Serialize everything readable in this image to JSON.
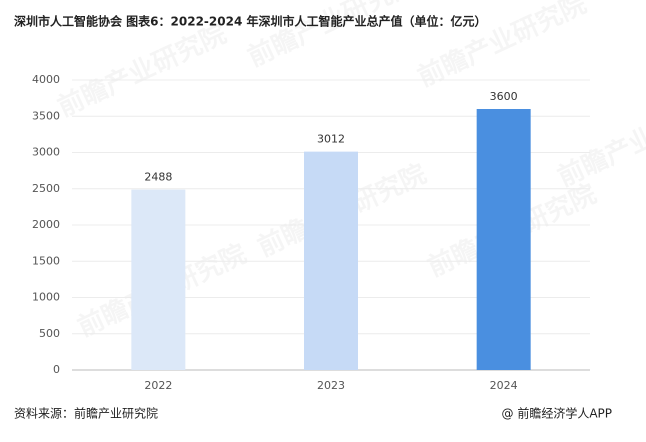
{
  "chart_data": {
    "type": "bar",
    "title": "深圳市人工智能协会  图表6：2022-2024 年深圳市人工智能产业总产值（单位：亿元）",
    "categories": [
      "2022",
      "2023",
      "2024"
    ],
    "values": [
      2488,
      3012,
      3600
    ],
    "colors": [
      "#dce8f8",
      "#c6daf6",
      "#4a8fe0"
    ],
    "ylim": [
      0,
      4000
    ],
    "yticks": [
      0,
      500,
      1000,
      1500,
      2000,
      2500,
      3000,
      3500,
      4000
    ],
    "grid": true,
    "source": "资料来源：前瞻产业研究院",
    "credit": "@ 前瞻经济学人APP",
    "watermark": "前瞻产业研究院"
  }
}
